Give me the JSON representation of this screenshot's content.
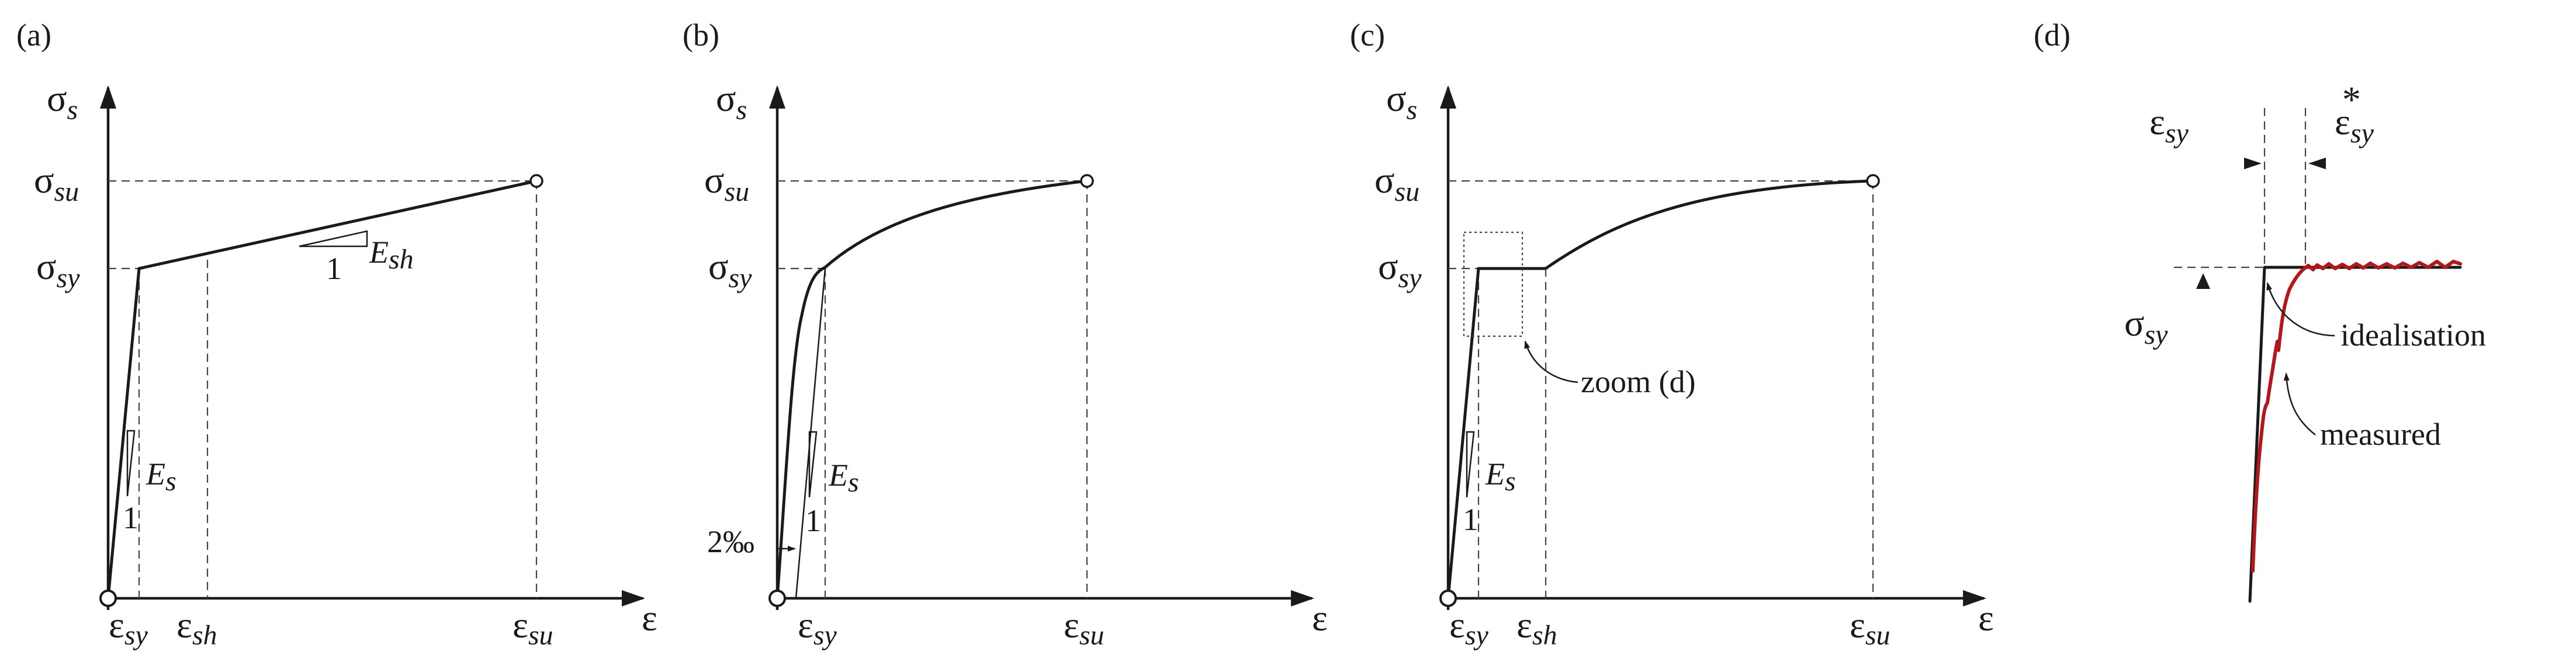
{
  "panels": {
    "a": {
      "label": "(a)",
      "y_axis": {
        "sym": "σ",
        "sub": "s"
      },
      "x_axis": {
        "sym": "ε"
      },
      "y_ticks": [
        {
          "sym": "σ",
          "sub": "su"
        },
        {
          "sym": "σ",
          "sub": "sy"
        }
      ],
      "x_ticks": [
        {
          "sym": "ε",
          "sub": "sy"
        },
        {
          "sym": "ε",
          "sub": "sh"
        },
        {
          "sym": "ε",
          "sub": "su"
        }
      ],
      "slope_es": {
        "one": "1",
        "sym": "E",
        "sub": "s"
      },
      "slope_esh": {
        "one": "1",
        "sym": "E",
        "sub": "sh"
      }
    },
    "b": {
      "label": "(b)",
      "y_axis": {
        "sym": "σ",
        "sub": "s"
      },
      "x_axis": {
        "sym": "ε"
      },
      "y_ticks": [
        {
          "sym": "σ",
          "sub": "su"
        },
        {
          "sym": "σ",
          "sub": "sy"
        }
      ],
      "x_ticks": [
        {
          "sym": "ε",
          "sub": "sy"
        },
        {
          "sym": "ε",
          "sub": "su"
        }
      ],
      "slope_es": {
        "one": "1",
        "sym": "E",
        "sub": "s"
      },
      "offset_note": "2‰"
    },
    "c": {
      "label": "(c)",
      "y_axis": {
        "sym": "σ",
        "sub": "s"
      },
      "x_axis": {
        "sym": "ε"
      },
      "y_ticks": [
        {
          "sym": "σ",
          "sub": "su"
        },
        {
          "sym": "σ",
          "sub": "sy"
        }
      ],
      "x_ticks": [
        {
          "sym": "ε",
          "sub": "sy"
        },
        {
          "sym": "ε",
          "sub": "sh"
        },
        {
          "sym": "ε",
          "sub": "su"
        }
      ],
      "slope_es": {
        "one": "1",
        "sym": "E",
        "sub": "s"
      },
      "zoom_note": "zoom (d)"
    },
    "d": {
      "label": "(d)",
      "eps_sy": {
        "sym": "ε",
        "sub": "sy"
      },
      "eps_sy_star": {
        "sym": "ε",
        "sub": "sy",
        "sup": "*"
      },
      "sigma_sy": {
        "sym": "σ",
        "sub": "sy"
      },
      "idealisation": "idealisation",
      "measured": "measured"
    }
  },
  "colors": {
    "ink": "#1a1a1a",
    "measured": "#b3161b"
  }
}
